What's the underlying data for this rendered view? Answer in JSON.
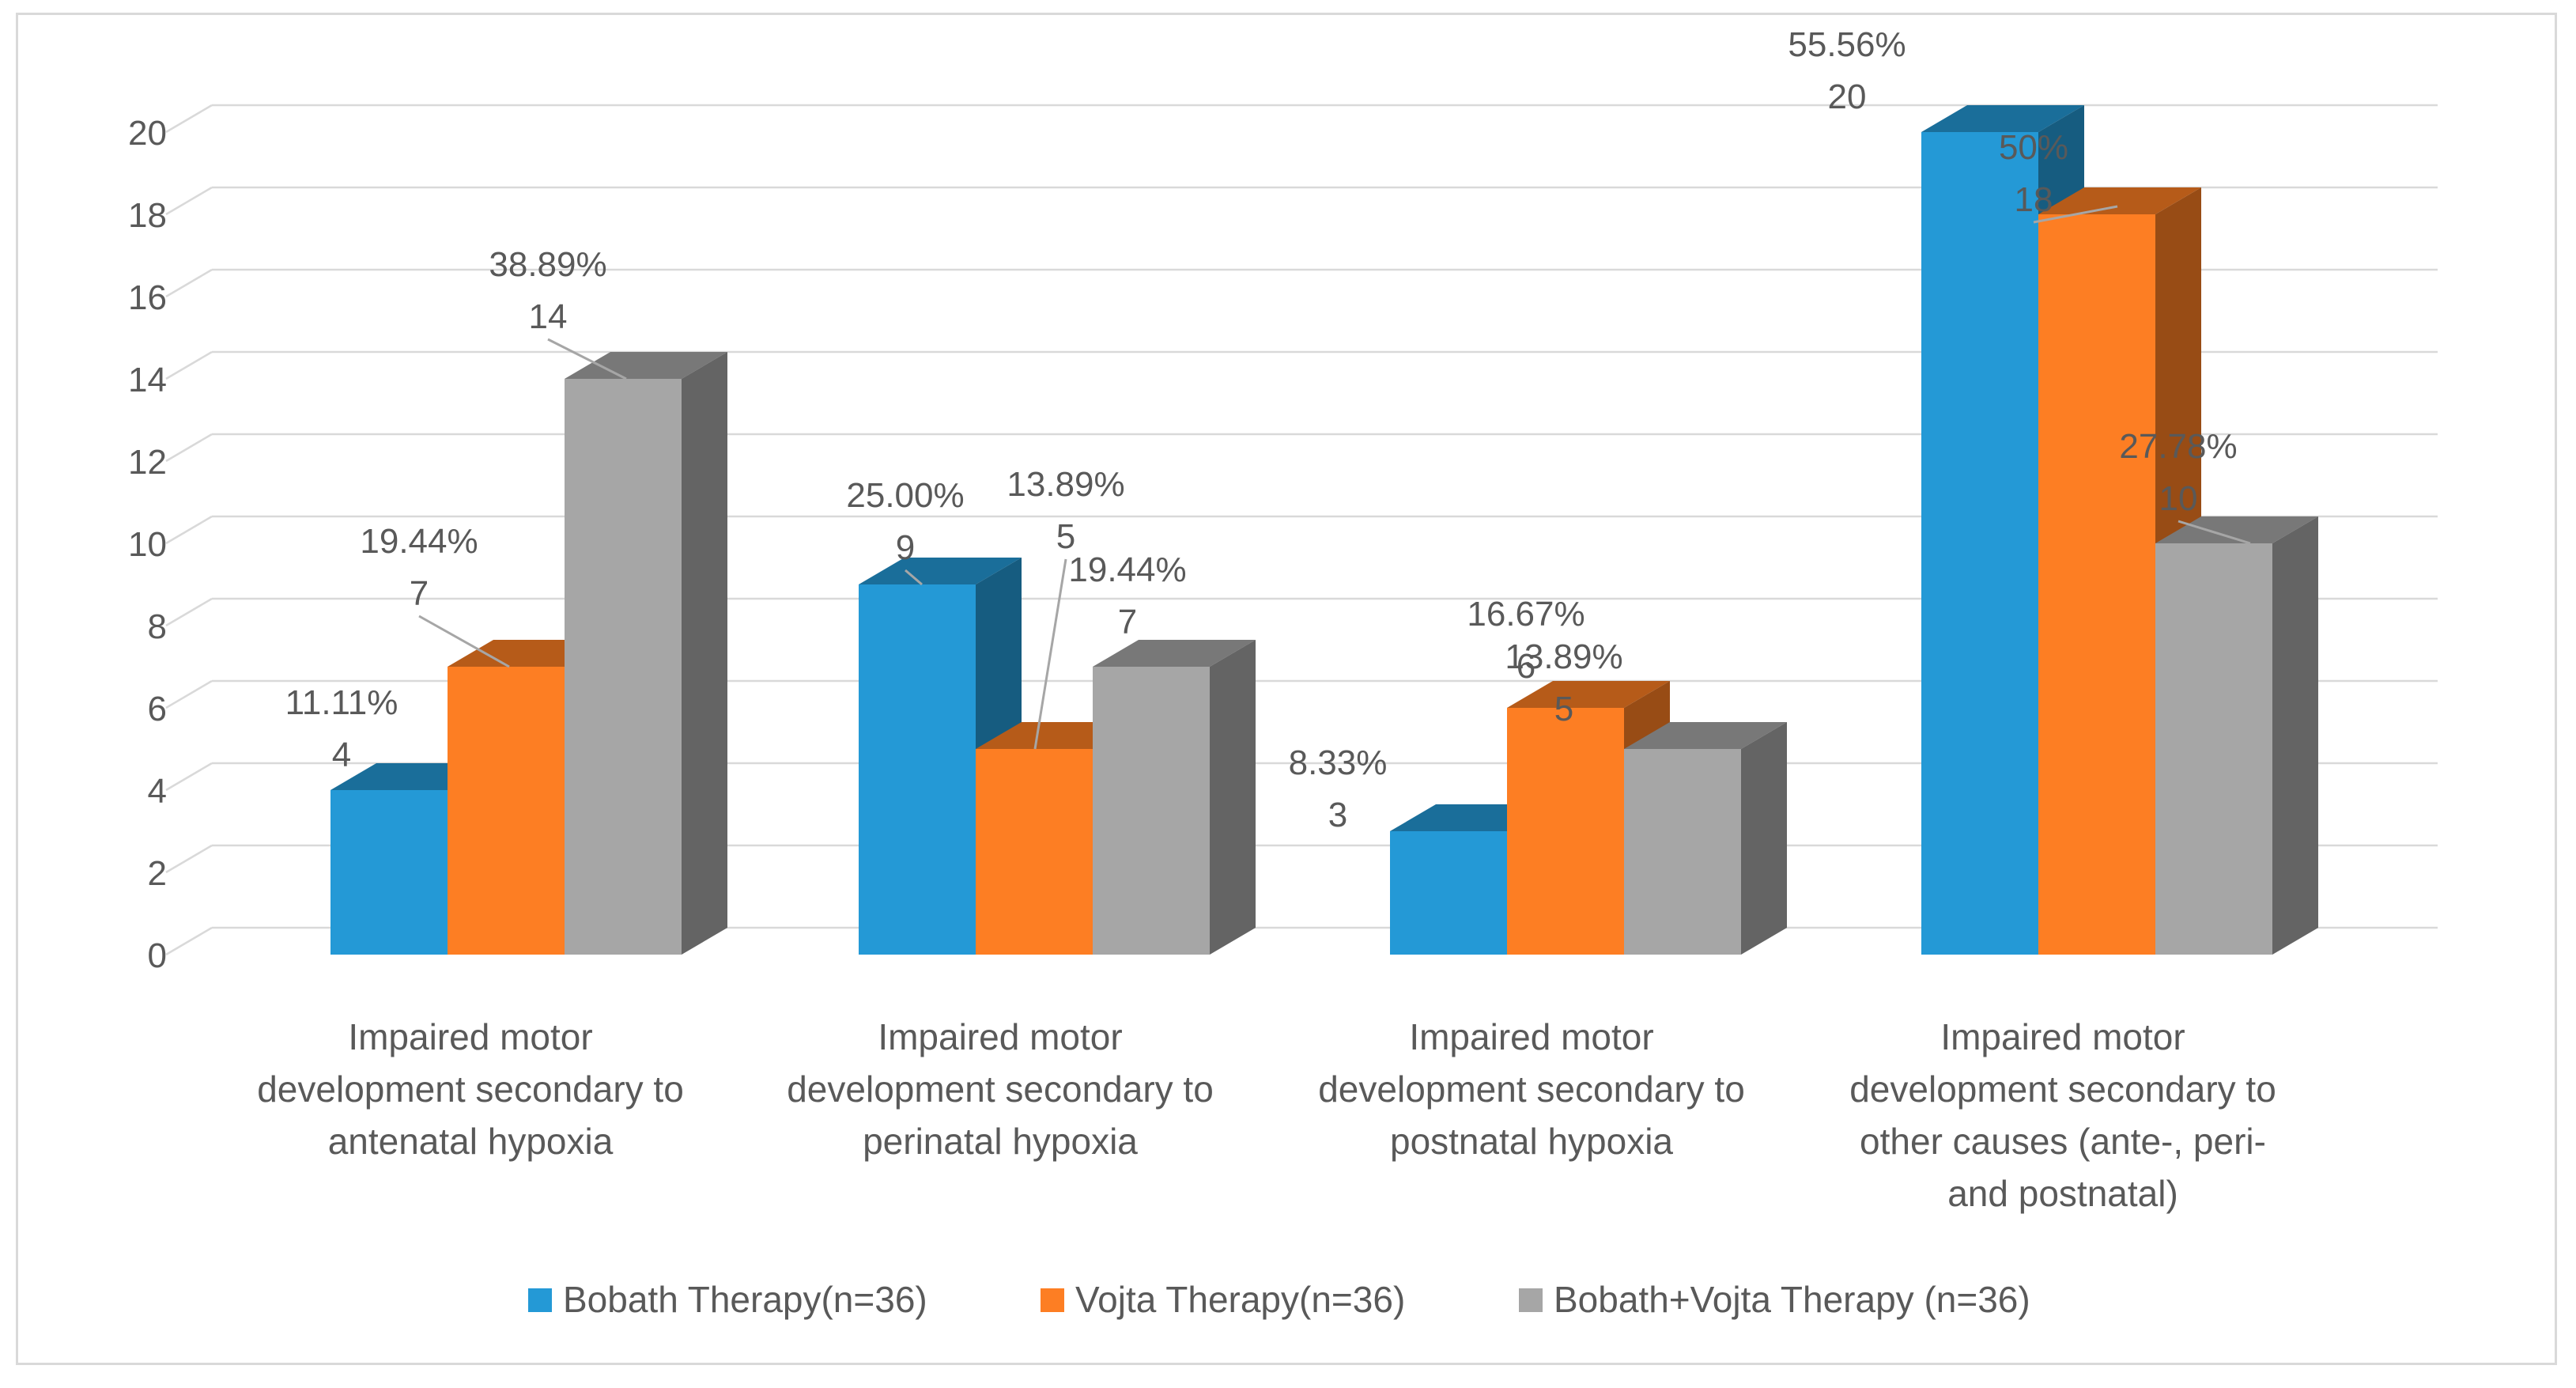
{
  "chart_data": {
    "type": "bar",
    "categories": [
      [
        "Impaired motor",
        "development secondary to",
        "antenatal hypoxia"
      ],
      [
        "Impaired motor",
        "development secondary to",
        "perinatal hypoxia"
      ],
      [
        "Impaired motor",
        "development secondary to",
        "postnatal hypoxia"
      ],
      [
        "Impaired motor",
        "development secondary to",
        "other causes (ante-, peri-",
        "and postnatal)"
      ]
    ],
    "series": [
      {
        "name": "Bobath Therapy(n=36)",
        "color": "#2499d6",
        "values": [
          4,
          9,
          3,
          20
        ],
        "labels": [
          "11.11%",
          "25.00%",
          "8.33%",
          "55.56%"
        ]
      },
      {
        "name": "Vojta Therapy(n=36)",
        "color": "#fd7e23",
        "values": [
          7,
          5,
          6,
          18
        ],
        "labels": [
          "19.44%",
          "13.89%",
          "16.67%",
          "50%"
        ]
      },
      {
        "name": "Bobath+Vojta Therapy (n=36)",
        "color": "#a6a6a6",
        "values": [
          14,
          7,
          5,
          10
        ],
        "labels": [
          "38.89%",
          "19.44%",
          "13.89%",
          "27.78%"
        ]
      }
    ],
    "ylim": [
      0,
      20
    ],
    "yticks": [
      0,
      2,
      4,
      6,
      8,
      10,
      12,
      14,
      16,
      18,
      20
    ],
    "grid": true,
    "legend": "bottom",
    "style": "3d-clustered-column"
  }
}
